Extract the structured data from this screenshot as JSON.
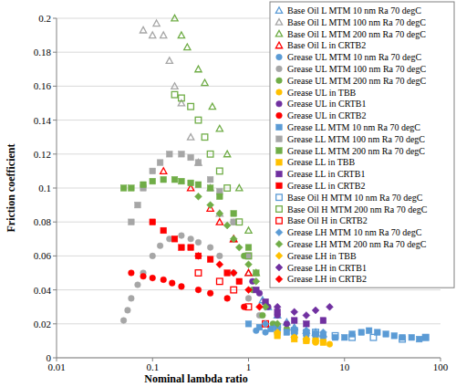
{
  "chart_data": {
    "type": "scatter",
    "x_label": "Nominal lambda ratio",
    "y_label": "Friction coefficient",
    "log": "x",
    "grid": "y",
    "legend": "top-right",
    "xlim": [
      0.01,
      100
    ],
    "xticks": [
      0.01,
      0.1,
      1,
      10,
      100
    ],
    "ylim": [
      0,
      0.2
    ],
    "yticks": [
      0,
      0.02,
      0.04,
      0.06,
      0.08,
      0.1,
      0.12,
      0.14,
      0.16,
      0.18,
      0.2
    ],
    "series": [
      {
        "name": "Base Oil L MTM 10 nm Ra 70 degC",
        "color": "#5b9bd5",
        "marker": "triangle-open",
        "x": [
          1.4,
          1.6,
          2,
          2.5,
          3,
          4,
          5,
          6
        ],
        "values": [
          0.034,
          0.03,
          0.025,
          0.021,
          0.018,
          0.016,
          0.015,
          0.014
        ]
      },
      {
        "name": "Base Oil L MTM 100 nm Ra 70 degC",
        "color": "#a6a6a6",
        "marker": "triangle-open",
        "x": [
          0.08,
          0.1,
          0.11,
          0.13,
          0.15,
          0.17,
          0.2,
          0.25,
          0.3,
          0.4,
          0.5,
          0.7,
          1
        ],
        "values": [
          0.193,
          0.19,
          0.197,
          0.19,
          0.175,
          0.16,
          0.15,
          0.13,
          0.115,
          0.1,
          0.085,
          0.07,
          0.05
        ]
      },
      {
        "name": "Base Oil L MTM 200 nm Ra 70 degC",
        "color": "#70ad47",
        "marker": "triangle-open",
        "x": [
          0.17,
          0.2,
          0.23,
          0.3,
          0.35,
          0.42,
          0.5,
          0.6,
          0.8,
          1,
          1.2
        ],
        "values": [
          0.2,
          0.19,
          0.183,
          0.17,
          0.162,
          0.148,
          0.135,
          0.12,
          0.1,
          0.075,
          0.05
        ]
      },
      {
        "name": "Base Oil L in CRTB2",
        "color": "#ff0000",
        "marker": "triangle-open",
        "x": [
          0.13,
          0.25,
          0.4,
          0.5,
          0.7,
          1
        ],
        "values": [
          0.11,
          0.1,
          0.088,
          0.08,
          0.07,
          0.05
        ]
      },
      {
        "name": "Grease UL MTM 10 nm Ra 70 degC",
        "color": "#5b9bd5",
        "marker": "circle",
        "x": [
          1.2,
          1.5,
          2,
          3,
          4,
          5
        ],
        "values": [
          0.016,
          0.015,
          0.014,
          0.014,
          0.013,
          0.013
        ]
      },
      {
        "name": "Grease UL MTM 100 nm Ra 70 degC",
        "color": "#a6a6a6",
        "marker": "circle",
        "x": [
          0.05,
          0.055,
          0.06,
          0.07,
          0.08,
          0.1,
          0.12,
          0.15,
          0.2,
          0.25,
          0.3,
          0.4,
          0.5,
          0.7,
          1,
          1.3
        ],
        "values": [
          0.022,
          0.028,
          0.035,
          0.043,
          0.05,
          0.06,
          0.066,
          0.07,
          0.072,
          0.07,
          0.068,
          0.065,
          0.06,
          0.05,
          0.035,
          0.025
        ]
      },
      {
        "name": "Grease UL MTM 200 nm Ra 70 degC",
        "color": "#70ad47",
        "marker": "circle",
        "x": [
          0.7,
          0.9,
          1.1,
          1.4,
          1.8,
          2.5
        ],
        "values": [
          0.08,
          0.06,
          0.04,
          0.025,
          0.02,
          0.017
        ]
      },
      {
        "name": "Grease UL in TBB",
        "color": "#ffc000",
        "marker": "circle",
        "x": [
          3,
          4,
          5,
          6,
          7
        ],
        "values": [
          0.012,
          0.01,
          0.009,
          0.01,
          0.008
        ]
      },
      {
        "name": "Grease UL in CRTB1",
        "color": "#7030a0",
        "marker": "circle",
        "x": [
          1.1,
          1.3,
          1.6,
          2,
          2.5
        ],
        "values": [
          0.045,
          0.038,
          0.03,
          0.025,
          0.02
        ]
      },
      {
        "name": "Grease UL in CRTB2",
        "color": "#ff0000",
        "marker": "circle",
        "x": [
          0.06,
          0.08,
          0.1,
          0.13,
          0.16,
          0.2,
          0.3,
          0.4,
          0.6,
          0.9
        ],
        "values": [
          0.05,
          0.048,
          0.047,
          0.046,
          0.044,
          0.042,
          0.04,
          0.038,
          0.035,
          0.03
        ]
      },
      {
        "name": "Grease LL MTM 10 nm Ra 70 degC",
        "color": "#5b9bd5",
        "marker": "square",
        "x": [
          1,
          1.3,
          1.7,
          2,
          2.5,
          3,
          4,
          5,
          6,
          8,
          10,
          12,
          15,
          18,
          22,
          27,
          33,
          40,
          50,
          60,
          70
        ],
        "values": [
          0.02,
          0.018,
          0.017,
          0.016,
          0.015,
          0.016,
          0.015,
          0.014,
          0.013,
          0.012,
          0.012,
          0.014,
          0.015,
          0.016,
          0.015,
          0.014,
          0.013,
          0.012,
          0.012,
          0.011,
          0.012
        ]
      },
      {
        "name": "Grease LL MTM 100 nm Ra 70 degC",
        "color": "#a6a6a6",
        "marker": "square",
        "x": [
          0.06,
          0.07,
          0.08,
          0.1,
          0.12,
          0.15,
          0.2,
          0.25,
          0.3,
          0.4,
          0.5,
          0.7,
          1
        ],
        "values": [
          0.08,
          0.09,
          0.1,
          0.11,
          0.115,
          0.12,
          0.12,
          0.118,
          0.115,
          0.105,
          0.098,
          0.08,
          0.06
        ]
      },
      {
        "name": "Grease LL MTM 200 nm Ra 70 degC",
        "color": "#70ad47",
        "marker": "square",
        "x": [
          0.05,
          0.06,
          0.08,
          0.1,
          0.13,
          0.17,
          0.2,
          0.25,
          0.3,
          0.4,
          0.5,
          0.7,
          1,
          1.2
        ],
        "values": [
          0.1,
          0.1,
          0.102,
          0.104,
          0.105,
          0.105,
          0.104,
          0.103,
          0.102,
          0.1,
          0.095,
          0.085,
          0.065,
          0.05
        ]
      },
      {
        "name": "Grease LL in TBB",
        "color": "#ffc000",
        "marker": "square",
        "x": [
          2,
          3,
          4,
          5,
          6
        ],
        "values": [
          0.013,
          0.011,
          0.01,
          0.01,
          0.009
        ]
      },
      {
        "name": "Grease LL in CRTB1",
        "color": "#7030a0",
        "marker": "square",
        "x": [
          1.2,
          1.5,
          2,
          3,
          4,
          6
        ],
        "values": [
          0.04,
          0.033,
          0.027,
          0.022,
          0.02,
          0.022
        ]
      },
      {
        "name": "Grease LL in CRTB2",
        "color": "#ff0000",
        "marker": "square",
        "x": [
          0.1,
          0.13,
          0.17,
          0.2,
          0.25,
          0.3,
          0.4,
          0.6,
          0.8
        ],
        "values": [
          0.08,
          0.075,
          0.07,
          0.065,
          0.065,
          0.06,
          0.058,
          0.05,
          0.045
        ]
      },
      {
        "name": "Base Oil H MTM 10 nm Ra 70 degC",
        "color": "#5b9bd5",
        "marker": "square-open",
        "x": [
          2,
          3,
          5,
          8,
          12,
          20,
          40,
          70
        ],
        "values": [
          0.018,
          0.016,
          0.015,
          0.013,
          0.012,
          0.012,
          0.011,
          0.012
        ]
      },
      {
        "name": "Base Oil H MTM 200 nm Ra 70 degC",
        "color": "#70ad47",
        "marker": "square-open",
        "x": [
          0.17,
          0.2,
          0.25,
          0.3,
          0.35,
          0.4,
          0.5,
          0.6,
          0.8,
          1
        ],
        "values": [
          0.155,
          0.153,
          0.148,
          0.14,
          0.13,
          0.12,
          0.11,
          0.1,
          0.08,
          0.06
        ]
      },
      {
        "name": "Base Oil H in CRTB2",
        "color": "#ff0000",
        "marker": "square-open",
        "x": [
          0.3,
          0.5,
          0.7,
          1,
          1.5
        ],
        "values": [
          0.05,
          0.045,
          0.04,
          0.03,
          0.02
        ]
      },
      {
        "name": "Grease LH MTM 10 nm Ra 70 degC",
        "color": "#5b9bd5",
        "marker": "diamond",
        "x": [
          1.5,
          2,
          3,
          4,
          6
        ],
        "values": [
          0.02,
          0.018,
          0.017,
          0.016,
          0.015
        ]
      },
      {
        "name": "Grease LH MTM 200 nm Ra 70 degC",
        "color": "#70ad47",
        "marker": "diamond",
        "x": [
          0.3,
          0.4,
          0.5,
          0.6,
          0.7,
          0.8,
          1,
          1.2,
          1.5,
          2
        ],
        "values": [
          0.095,
          0.09,
          0.085,
          0.078,
          0.07,
          0.065,
          0.055,
          0.045,
          0.03,
          0.02
        ]
      },
      {
        "name": "Grease LH in TBB",
        "color": "#ffc000",
        "marker": "diamond",
        "x": [
          2,
          3,
          4,
          5
        ],
        "values": [
          0.015,
          0.012,
          0.011,
          0.01
        ]
      },
      {
        "name": "Grease LH in CRTB1",
        "color": "#7030a0",
        "marker": "diamond",
        "x": [
          2,
          3,
          4,
          5,
          7
        ],
        "values": [
          0.03,
          0.027,
          0.025,
          0.028,
          0.03
        ]
      },
      {
        "name": "Grease LH in CRTB2",
        "color": "#ff0000",
        "marker": "diamond",
        "x": [
          0.3,
          0.5,
          0.7,
          1,
          1.3
        ],
        "values": [
          0.06,
          0.055,
          0.05,
          0.04,
          0.03
        ]
      }
    ]
  }
}
